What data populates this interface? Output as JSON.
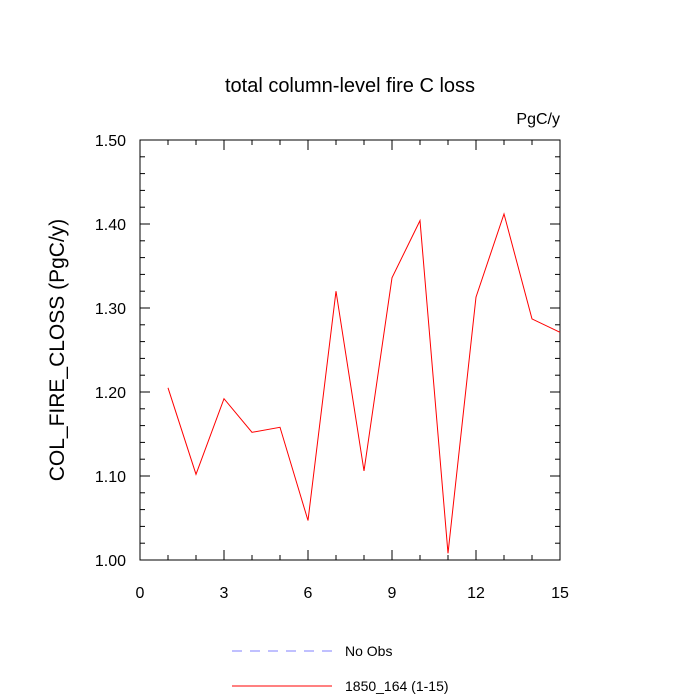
{
  "chart_data": {
    "type": "line",
    "title": "total column-level fire C loss",
    "units_label": "PgC/y",
    "xlabel": "",
    "ylabel": "COL_FIRE_CLOSS  (PgC/y)",
    "xlim": [
      0,
      15
    ],
    "ylim": [
      1.0,
      1.5
    ],
    "x_ticks": [
      0,
      3,
      6,
      9,
      12,
      15
    ],
    "x_tick_labels": [
      "0",
      "3",
      "6",
      "9",
      "12",
      "15"
    ],
    "y_ticks": [
      1.0,
      1.1,
      1.2,
      1.3,
      1.4,
      1.5
    ],
    "y_tick_labels": [
      "1.00",
      "1.10",
      "1.20",
      "1.30",
      "1.40",
      "1.50"
    ],
    "grid": false,
    "legend_position": "bottom",
    "series": [
      {
        "name": "No Obs",
        "color": "#8080ff",
        "style": "dashed",
        "x": [],
        "y": []
      },
      {
        "name": "1850_164 (1-15)",
        "color": "#ff0000",
        "style": "solid",
        "x": [
          1,
          2,
          3,
          4,
          5,
          6,
          7,
          8,
          9,
          10,
          11,
          12,
          13,
          14,
          15
        ],
        "y": [
          1.205,
          1.102,
          1.192,
          1.152,
          1.158,
          1.047,
          1.32,
          1.106,
          1.336,
          1.404,
          1.008,
          1.313,
          1.412,
          1.287,
          1.271
        ]
      }
    ]
  }
}
